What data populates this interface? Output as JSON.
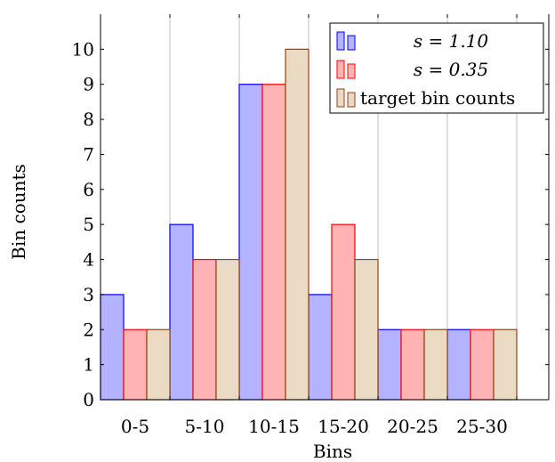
{
  "chart_data": {
    "type": "bar",
    "title": "",
    "xlabel": "Bins",
    "ylabel": "Bin counts",
    "categories": [
      "0-5",
      "5-10",
      "10-15",
      "15-20",
      "20-25",
      "25-30"
    ],
    "ylim": [
      0,
      11
    ],
    "yticks": [
      "0",
      "1",
      "2",
      "3",
      "4",
      "5",
      "6",
      "7",
      "8",
      "9",
      "10"
    ],
    "grid": "vertical",
    "legend_position": "top-right",
    "series": [
      {
        "name": "s = 1.10",
        "values": [
          3,
          5,
          9,
          3,
          2,
          2
        ],
        "fill": "#b3b3ff",
        "stroke": "#0000ff"
      },
      {
        "name": "s = 0.35",
        "values": [
          2,
          4,
          9,
          5,
          2,
          2
        ],
        "fill": "#ffb3b3",
        "stroke": "#ff0000"
      },
      {
        "name": "target bin counts",
        "values": [
          2,
          4,
          10,
          4,
          2,
          2
        ],
        "fill": "#ead9c3",
        "stroke": "#8b4513"
      }
    ]
  }
}
